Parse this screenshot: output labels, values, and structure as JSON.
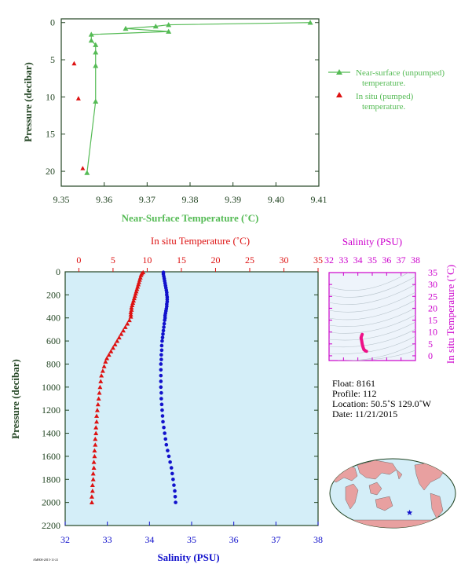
{
  "colors": {
    "green": "#55bb55",
    "red": "#dd1111",
    "blue": "#1111cc",
    "magenta": "#cc00cc",
    "axis_dark": "#224422",
    "panel_bg": "#d4eef8",
    "ts_bg": "#eef4fb",
    "land": "#e8a0a0"
  },
  "chart_data": [
    {
      "type": "line",
      "xlabel": "Near-Surface Temperature (˚C)",
      "ylabel": "Pressure (decibar)",
      "xlim": [
        9.35,
        9.41
      ],
      "ylim": [
        22,
        -0.5
      ],
      "xticks": [
        "9.35",
        "9.36",
        "9.37",
        "9.38",
        "9.39",
        "9.40",
        "9.41"
      ],
      "yticks": [
        "0",
        "5",
        "10",
        "15",
        "20"
      ],
      "legend_position": "right",
      "series": [
        {
          "name": "Near-surface (unpumped) temperature.",
          "marker": "triangle-line",
          "points": [
            [
              9.408,
              0.0
            ],
            [
              9.375,
              0.3
            ],
            [
              9.372,
              0.5
            ],
            [
              9.365,
              0.8
            ],
            [
              9.375,
              1.2
            ],
            [
              9.357,
              1.6
            ],
            [
              9.357,
              2.4
            ],
            [
              9.358,
              3.0
            ],
            [
              9.358,
              4.0
            ],
            [
              9.358,
              5.8
            ],
            [
              9.358,
              10.6
            ],
            [
              9.356,
              20.2
            ]
          ]
        },
        {
          "name": "In situ (pumped) temperature.",
          "marker": "triangle",
          "points": [
            [
              9.353,
              5.5
            ],
            [
              9.354,
              10.2
            ],
            [
              9.355,
              19.6
            ]
          ]
        }
      ]
    },
    {
      "type": "scatter",
      "xlabel_top": "In situ Temperature (˚C)",
      "xlabel_bottom": "Salinity (PSU)",
      "ylabel": "Pressure (decibar)",
      "temp_lim": [
        -2,
        35
      ],
      "sal_lim": [
        32,
        38
      ],
      "ylim": [
        2200,
        0
      ],
      "temp_ticks": [
        "0",
        "5",
        "10",
        "15",
        "20",
        "25",
        "30",
        "35"
      ],
      "sal_ticks": [
        "32",
        "33",
        "34",
        "35",
        "36",
        "37",
        "38"
      ],
      "yticks": [
        "0",
        "200",
        "400",
        "600",
        "800",
        "1000",
        "1200",
        "1400",
        "1600",
        "1800",
        "2000",
        "2200"
      ],
      "temperature_profile": [
        [
          9.4,
          5
        ],
        [
          9.2,
          15
        ],
        [
          9.1,
          30
        ],
        [
          9.0,
          50
        ],
        [
          8.9,
          70
        ],
        [
          8.8,
          90
        ],
        [
          8.7,
          110
        ],
        [
          8.6,
          130
        ],
        [
          8.5,
          150
        ],
        [
          8.4,
          170
        ],
        [
          8.3,
          190
        ],
        [
          8.2,
          210
        ],
        [
          8.1,
          230
        ],
        [
          8.0,
          250
        ],
        [
          7.9,
          270
        ],
        [
          7.8,
          290
        ],
        [
          7.7,
          310
        ],
        [
          7.7,
          330
        ],
        [
          7.6,
          350
        ],
        [
          7.6,
          370
        ],
        [
          7.6,
          390
        ],
        [
          7.4,
          420
        ],
        [
          7.1,
          450
        ],
        [
          6.8,
          480
        ],
        [
          6.5,
          510
        ],
        [
          6.2,
          540
        ],
        [
          5.9,
          570
        ],
        [
          5.6,
          600
        ],
        [
          5.3,
          630
        ],
        [
          5.0,
          660
        ],
        [
          4.7,
          690
        ],
        [
          4.4,
          720
        ],
        [
          4.1,
          750
        ],
        [
          3.9,
          780
        ],
        [
          3.7,
          820
        ],
        [
          3.5,
          860
        ],
        [
          3.3,
          900
        ],
        [
          3.2,
          950
        ],
        [
          3.1,
          1000
        ],
        [
          3.0,
          1050
        ],
        [
          2.9,
          1100
        ],
        [
          2.8,
          1150
        ],
        [
          2.7,
          1200
        ],
        [
          2.6,
          1250
        ],
        [
          2.6,
          1300
        ],
        [
          2.5,
          1350
        ],
        [
          2.5,
          1400
        ],
        [
          2.4,
          1450
        ],
        [
          2.4,
          1500
        ],
        [
          2.3,
          1550
        ],
        [
          2.3,
          1600
        ],
        [
          2.2,
          1650
        ],
        [
          2.2,
          1700
        ],
        [
          2.1,
          1750
        ],
        [
          2.1,
          1800
        ],
        [
          2.0,
          1850
        ],
        [
          2.0,
          1900
        ],
        [
          1.9,
          1950
        ],
        [
          1.9,
          2000
        ]
      ],
      "salinity_profile": [
        [
          34.33,
          5
        ],
        [
          34.33,
          20
        ],
        [
          34.34,
          40
        ],
        [
          34.35,
          60
        ],
        [
          34.36,
          80
        ],
        [
          34.37,
          100
        ],
        [
          34.38,
          120
        ],
        [
          34.39,
          140
        ],
        [
          34.4,
          160
        ],
        [
          34.41,
          180
        ],
        [
          34.41,
          200
        ],
        [
          34.42,
          220
        ],
        [
          34.42,
          240
        ],
        [
          34.42,
          260
        ],
        [
          34.41,
          280
        ],
        [
          34.41,
          300
        ],
        [
          34.4,
          320
        ],
        [
          34.39,
          340
        ],
        [
          34.38,
          360
        ],
        [
          34.37,
          380
        ],
        [
          34.37,
          400
        ],
        [
          34.36,
          420
        ],
        [
          34.35,
          450
        ],
        [
          34.34,
          480
        ],
        [
          34.33,
          510
        ],
        [
          34.32,
          540
        ],
        [
          34.31,
          570
        ],
        [
          34.3,
          600
        ],
        [
          34.29,
          640
        ],
        [
          34.29,
          680
        ],
        [
          34.28,
          720
        ],
        [
          34.28,
          760
        ],
        [
          34.27,
          800
        ],
        [
          34.27,
          850
        ],
        [
          34.27,
          900
        ],
        [
          34.27,
          950
        ],
        [
          34.27,
          1000
        ],
        [
          34.28,
          1050
        ],
        [
          34.28,
          1100
        ],
        [
          34.29,
          1150
        ],
        [
          34.3,
          1200
        ],
        [
          34.31,
          1250
        ],
        [
          34.32,
          1300
        ],
        [
          34.34,
          1350
        ],
        [
          34.36,
          1400
        ],
        [
          34.38,
          1450
        ],
        [
          34.4,
          1500
        ],
        [
          34.43,
          1550
        ],
        [
          34.46,
          1600
        ],
        [
          34.49,
          1650
        ],
        [
          34.52,
          1700
        ],
        [
          34.54,
          1750
        ],
        [
          34.56,
          1800
        ],
        [
          34.58,
          1850
        ],
        [
          34.6,
          1900
        ],
        [
          34.61,
          1950
        ],
        [
          34.62,
          2000
        ]
      ]
    },
    {
      "type": "line",
      "xlabel": "Salinity (PSU)",
      "ylabel": "In situ Temperature (˚C)",
      "xlim": [
        32,
        38
      ],
      "ylim": [
        -2,
        35
      ],
      "xticks": [
        "32",
        "33",
        "34",
        "35",
        "36",
        "37",
        "38"
      ],
      "yticks": [
        "0",
        "5",
        "10",
        "15",
        "20",
        "25",
        "30",
        "35"
      ],
      "series": [
        {
          "name": "",
          "points": [
            [
              34.3,
              9.0
            ],
            [
              34.25,
              8.2
            ],
            [
              34.22,
              7.5
            ],
            [
              34.26,
              6.5
            ],
            [
              34.3,
              5.0
            ],
            [
              34.36,
              3.6
            ],
            [
              34.42,
              2.6
            ],
            [
              34.52,
              2.1
            ],
            [
              34.6,
              1.9
            ]
          ]
        }
      ]
    }
  ],
  "info": {
    "float": "Float:  8161",
    "profile": "Profile:  112",
    "location": "Location:  50.5˚S  129.0˚W",
    "date": "Date:  11/21/2015"
  },
  "map": {
    "marker": "star",
    "marker_lon": -129.0,
    "marker_lat": -50.5
  },
  "footer_code": "AM800-2015-11-21"
}
